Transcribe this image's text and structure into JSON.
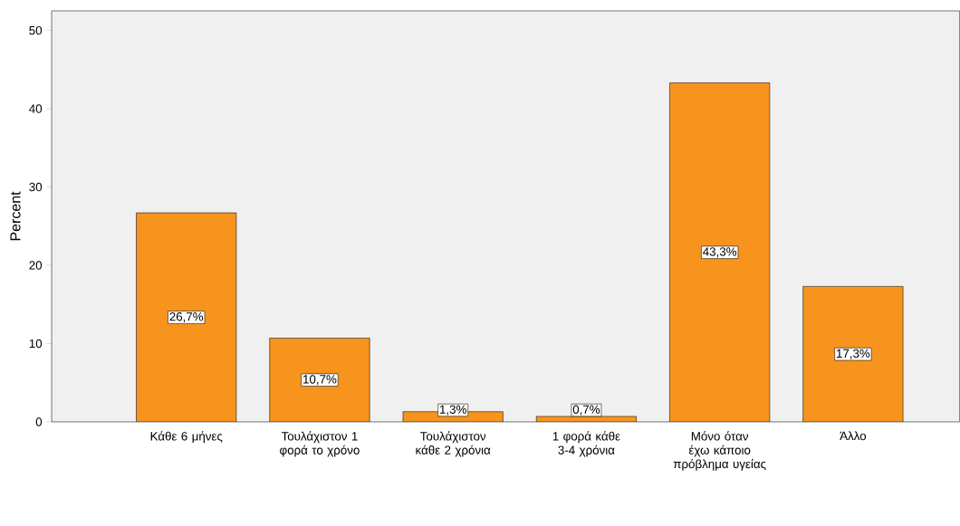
{
  "chart_data": {
    "type": "bar",
    "ylabel": "Percent",
    "categories": [
      "Κάθε 6 μήνες",
      "Τουλάχιστον 1 φορά το χρόνο",
      "Τουλάχιστον κάθε 2 χρόνια",
      "1 φορά κάθε 3-4 χρόνια",
      "Μόνο όταν έχω κάποιο πρόβλημα υγείας",
      "Άλλο"
    ],
    "values": [
      26.7,
      10.7,
      1.3,
      0.7,
      43.3,
      17.3
    ],
    "value_labels": [
      "26,7%",
      "10,7%",
      "1,3%",
      "0,7%",
      "43,3%",
      "17,3%"
    ],
    "color": "#f7941d",
    "ylim": [
      0,
      52.5
    ],
    "yticks": [
      0,
      10,
      20,
      30,
      40,
      50
    ]
  }
}
